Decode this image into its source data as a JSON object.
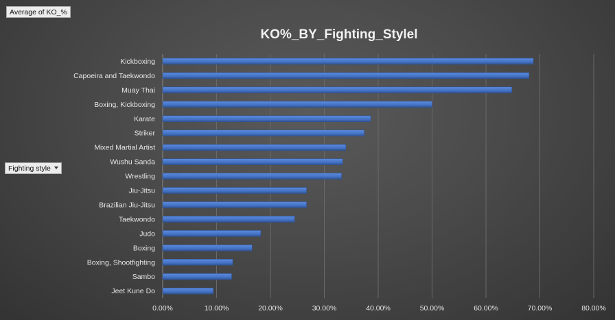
{
  "pivot_fields": {
    "value_field": "Average of KO_%",
    "row_field": "Fighting style"
  },
  "chart_data": {
    "type": "bar",
    "orientation": "horizontal",
    "title": "KO%_BY_Fighting_Stylel",
    "categories": [
      "Kickboxing",
      "Capoeira and Taekwondo",
      "Muay Thai",
      "Boxing, Kickboxing",
      "Karate",
      "Striker",
      "Mixed Martial Artist",
      "Wushu Sanda",
      "Wrestling",
      "Jiu-Jitsu",
      "Brazilian Jiu-Jitsu",
      "Taekwondo",
      "Judo",
      "Boxing",
      "Boxing, Shootfighting",
      "Sambo",
      "Jeet Kune Do"
    ],
    "series": [
      {
        "values": [
          68.8,
          68.0,
          64.8,
          50.0,
          38.6,
          37.4,
          34.0,
          33.4,
          33.2,
          26.7,
          26.7,
          24.5,
          18.2,
          16.6,
          13.0,
          12.8,
          9.4
        ]
      }
    ],
    "xlim": [
      0,
      80
    ],
    "xticks": [
      "0.00%",
      "10.00%",
      "20.00%",
      "30.00%",
      "40.00%",
      "50.00%",
      "60.00%",
      "70.00%",
      "80.00%"
    ],
    "grid": true,
    "colors": {
      "bar": "#4472c4",
      "bar_dark": "#2f528f",
      "gridline": "#6a6a6a"
    }
  }
}
